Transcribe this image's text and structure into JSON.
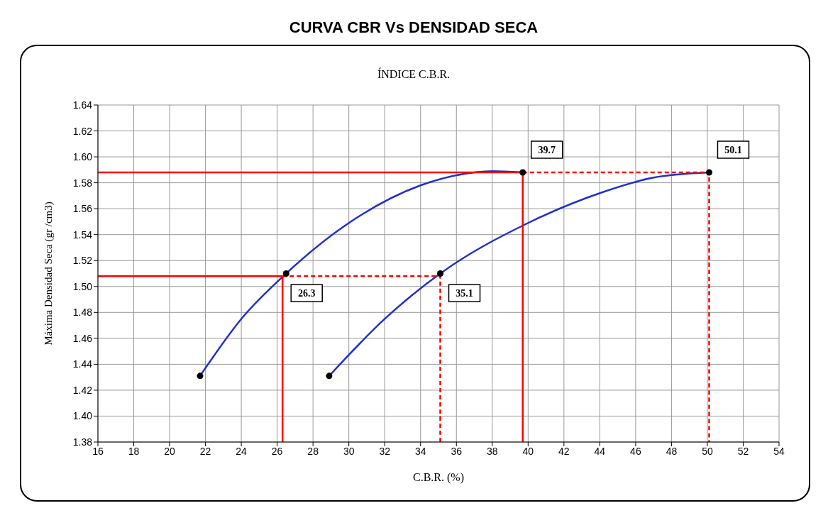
{
  "chart_data": {
    "type": "line",
    "title": "CURVA CBR Vs DENSIDAD SECA",
    "subtitle": "ÍNDICE C.B.R.",
    "xlabel": "C.B.R. (%)",
    "ylabel": "Máxima Densidad Seca (gr /cm3)",
    "xlim": [
      16,
      54
    ],
    "xticks": [
      16,
      18,
      20,
      22,
      24,
      26,
      28,
      30,
      32,
      34,
      36,
      38,
      40,
      42,
      44,
      46,
      48,
      50,
      52,
      54
    ],
    "ylim": [
      1.38,
      1.64
    ],
    "yticks": [
      1.38,
      {
        "value": 1.4,
        "label": "1.40"
      },
      1.42,
      1.44,
      1.46,
      1.48,
      {
        "value": 1.5,
        "label": "1.50"
      },
      1.52,
      1.54,
      1.56,
      1.58,
      {
        "value": 1.6,
        "label": "1.60"
      },
      1.62,
      1.64
    ],
    "grid": true,
    "legend": false,
    "series": [
      {
        "type": "line",
        "color": "#1f2fd0",
        "marker": "none",
        "line_style": "solid",
        "x": [
          21.7,
          24,
          26.5,
          30,
          34,
          37,
          38,
          39.7
        ],
        "values": [
          1.431,
          1.475,
          1.51,
          1.549,
          1.578,
          1.588,
          1.589,
          1.588
        ]
      },
      {
        "type": "line",
        "color": "#1f2fd0",
        "marker": "none",
        "line_style": "solid",
        "x": [
          28.9,
          32,
          35.1,
          40,
          44,
          47,
          50.1
        ],
        "values": [
          1.431,
          1.475,
          1.51,
          1.549,
          1.572,
          1.584,
          1.588
        ]
      },
      {
        "type": "scatter",
        "color": "#000000",
        "marker": "circle",
        "x": [
          21.7,
          26.5,
          39.7,
          28.9,
          35.1,
          50.1
        ],
        "values": [
          1.431,
          1.51,
          1.588,
          1.431,
          1.51,
          1.588
        ]
      },
      {
        "type": "line",
        "color": "#ff0000",
        "marker": "none",
        "line_style": "solid",
        "x": [
          16,
          39.7,
          39.7
        ],
        "values": [
          1.588,
          1.588,
          1.38
        ]
      },
      {
        "type": "line",
        "color": "#ff0000",
        "marker": "none",
        "line_style": "dashed",
        "x": [
          39.7,
          50.1,
          50.1
        ],
        "values": [
          1.588,
          1.588,
          1.38
        ]
      },
      {
        "type": "line",
        "color": "#ff0000",
        "marker": "none",
        "line_style": "solid",
        "x": [
          16,
          26.3,
          26.3
        ],
        "values": [
          1.508,
          1.508,
          1.38
        ]
      },
      {
        "type": "line",
        "color": "#ff0000",
        "marker": "none",
        "line_style": "dashed",
        "x": [
          26.3,
          35.1,
          35.1
        ],
        "values": [
          1.508,
          1.508,
          1.38
        ]
      }
    ],
    "annotations": [
      {
        "text": "39.7",
        "x": 39.7,
        "y": 1.588
      },
      {
        "text": "50.1",
        "x": 50.1,
        "y": 1.588
      },
      {
        "text": "26.3",
        "x": 26.3,
        "y": 1.508
      },
      {
        "text": "35.1",
        "x": 35.1,
        "y": 1.508
      }
    ]
  }
}
